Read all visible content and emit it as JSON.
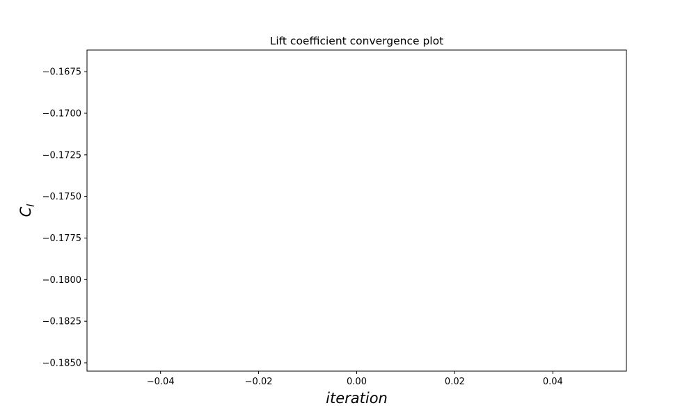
{
  "chart_data": {
    "type": "line",
    "title": "Lift coefficient convergence plot",
    "xlabel": "iteration",
    "ylabel": {
      "main": "C",
      "sub": "l"
    },
    "xlim": [
      -0.055,
      0.055
    ],
    "ylim": [
      -0.1855,
      -0.1662
    ],
    "xticks": [
      -0.04,
      -0.02,
      0.0,
      0.02,
      0.04
    ],
    "xtick_labels": [
      "−0.04",
      "−0.02",
      "0.00",
      "0.02",
      "0.04"
    ],
    "yticks": [
      -0.1675,
      -0.17,
      -0.1725,
      -0.175,
      -0.1775,
      -0.18,
      -0.1825,
      -0.185
    ],
    "ytick_labels": [
      "−0.1675",
      "−0.1700",
      "−0.1725",
      "−0.1750",
      "−0.1775",
      "−0.1800",
      "−0.1825",
      "−0.1850"
    ],
    "grid": false,
    "series": [
      {
        "x": [],
        "y": [],
        "color": "#1f77b4"
      }
    ]
  }
}
